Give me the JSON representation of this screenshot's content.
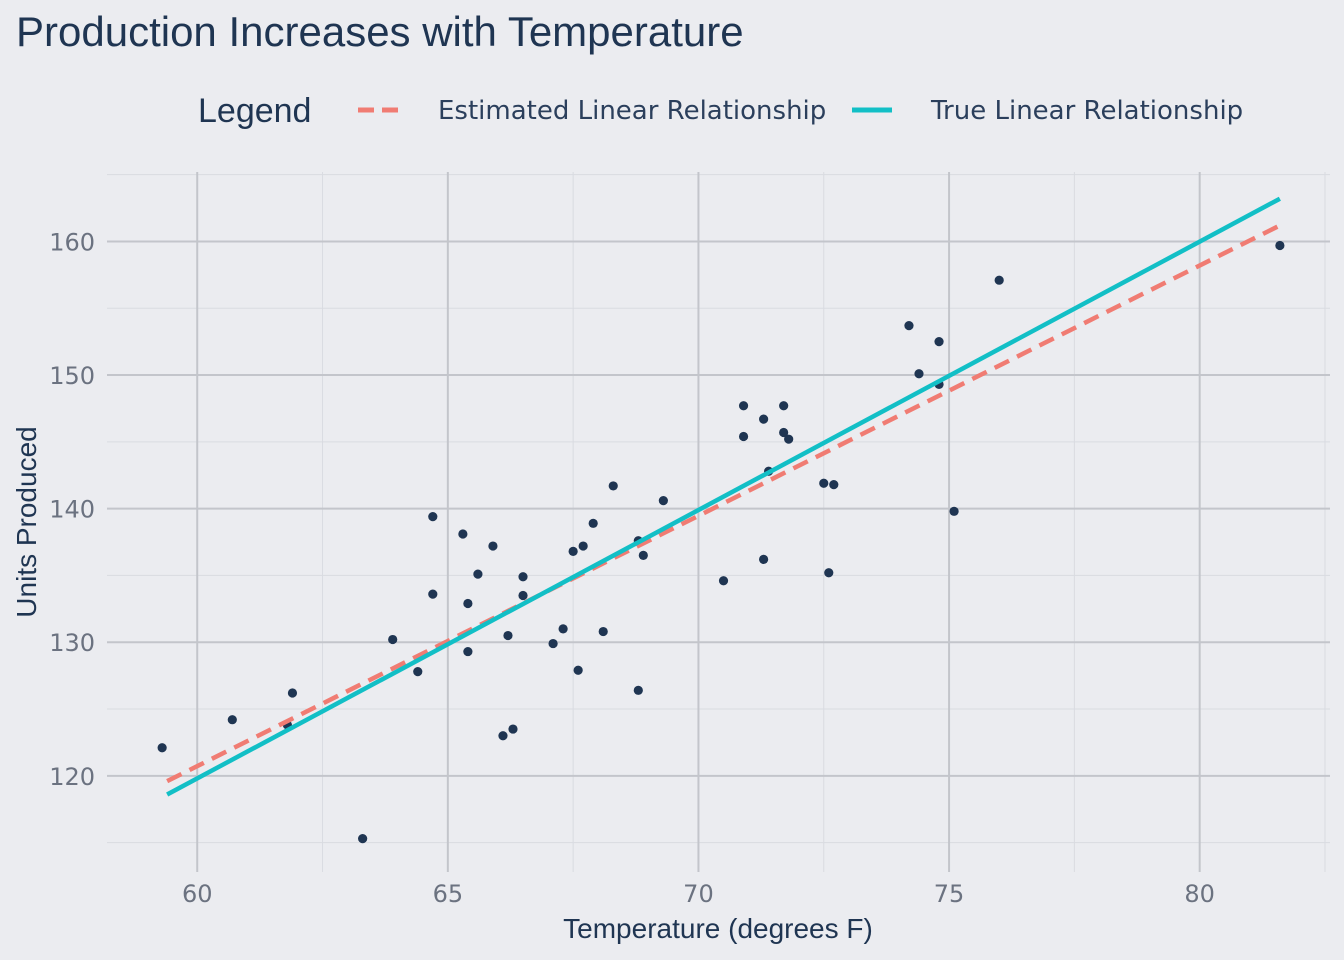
{
  "chart_data": {
    "type": "scatter",
    "title": "Production Increases with Temperature",
    "xlabel": "Temperature (degrees F)",
    "ylabel": "Units Produced",
    "xlim": [
      58.2,
      82.6
    ],
    "ylim": [
      112.8,
      165.2
    ],
    "x_major_ticks": [
      60,
      65,
      70,
      75,
      80
    ],
    "y_major_ticks": [
      120,
      130,
      140,
      150,
      160
    ],
    "x_minor_ticks": [
      62.5,
      67.5,
      72.5,
      77.5,
      82.5
    ],
    "y_minor_ticks": [
      115,
      125,
      135,
      145,
      155,
      165
    ],
    "grid": true,
    "legend": {
      "title": "Legend",
      "position": "top",
      "entries": [
        {
          "label": "Estimated Linear Relationship",
          "color": "#f07c73",
          "style": "dashed"
        },
        {
          "label": "True Linear Relationship",
          "color": "#12bfc6",
          "style": "solid"
        }
      ]
    },
    "lines": [
      {
        "name": "Estimated Linear Relationship",
        "color": "#f07c73",
        "style": "dashed",
        "x": [
          59.4,
          81.6
        ],
        "y": [
          119.6,
          161.2
        ]
      },
      {
        "name": "True Linear Relationship",
        "color": "#12bfc6",
        "style": "solid",
        "x": [
          59.4,
          81.6
        ],
        "y": [
          118.6,
          163.2
        ]
      }
    ],
    "points": {
      "color": "#1f3552",
      "x": [
        59.3,
        60.7,
        61.9,
        61.8,
        63.3,
        63.9,
        64.4,
        64.7,
        64.7,
        65.3,
        65.4,
        65.4,
        65.6,
        65.9,
        66.1,
        66.2,
        66.3,
        66.5,
        66.5,
        67.1,
        67.3,
        67.5,
        67.6,
        67.7,
        67.9,
        68.1,
        68.3,
        68.8,
        68.8,
        68.9,
        69.3,
        70.5,
        70.9,
        70.9,
        71.3,
        71.3,
        71.4,
        71.7,
        71.7,
        71.8,
        72.5,
        72.6,
        72.7,
        74.2,
        74.4,
        74.8,
        74.8,
        75.1,
        76.0,
        81.6
      ],
      "y": [
        122.1,
        124.2,
        126.2,
        123.8,
        115.3,
        130.2,
        127.8,
        139.4,
        133.6,
        138.1,
        132.9,
        129.3,
        135.1,
        137.2,
        123.0,
        130.5,
        123.5,
        134.9,
        133.5,
        129.9,
        131.0,
        136.8,
        127.9,
        137.2,
        138.9,
        130.8,
        141.7,
        137.6,
        126.4,
        136.5,
        140.6,
        134.6,
        147.7,
        145.4,
        136.2,
        146.7,
        142.8,
        145.7,
        147.7,
        145.2,
        141.9,
        135.2,
        141.8,
        153.7,
        150.1,
        152.5,
        149.3,
        139.8,
        157.1,
        159.7
      ]
    }
  }
}
